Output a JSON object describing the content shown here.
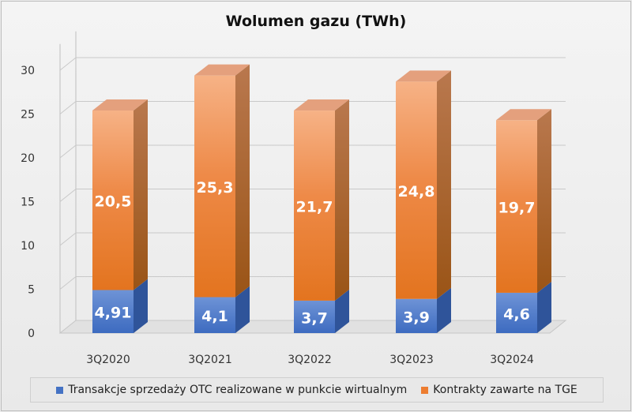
{
  "chart_data": {
    "type": "bar",
    "stacked": true,
    "three_d": true,
    "title": "Wolumen gazu (TWh)",
    "categories": [
      "3Q2020",
      "3Q2021",
      "3Q2022",
      "3Q2023",
      "3Q2024"
    ],
    "series": [
      {
        "name": "Transakcje sprzedaży OTC realizowane w punkcie wirtualnym",
        "values": [
          4.91,
          4.1,
          3.7,
          3.9,
          4.6
        ],
        "labels": [
          "4,91",
          "4,1",
          "3,7",
          "3,9",
          "4,6"
        ],
        "color": "#4472c4"
      },
      {
        "name": "Kontrakty zawarte na TGE",
        "values": [
          20.5,
          25.3,
          21.7,
          24.8,
          19.7
        ],
        "labels": [
          "20,5",
          "25,3",
          "21,7",
          "24,8",
          "19,7"
        ],
        "color": "#ed7d31"
      }
    ],
    "yticks": [
      0,
      5,
      10,
      15,
      20,
      25,
      30
    ],
    "ylim": [
      0,
      33
    ],
    "grid": true,
    "legend_position": "bottom"
  }
}
